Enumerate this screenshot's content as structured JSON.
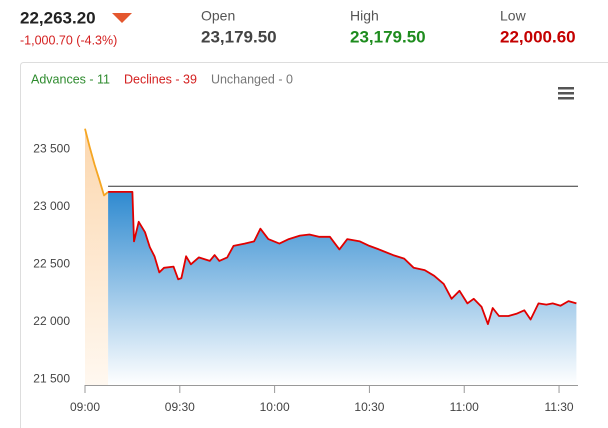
{
  "header": {
    "price": "22,263.20",
    "change": "-1,000.70 (-4.3%)",
    "stats": [
      {
        "label": "Open",
        "value": "23,179.50",
        "color": "#444444"
      },
      {
        "label": "High",
        "value": "23,179.50",
        "color": "#1e8c1e"
      },
      {
        "label": "Low",
        "value": "22,000.60",
        "color": "#c40000"
      }
    ]
  },
  "chart_data": {
    "type": "line",
    "legend": [
      {
        "text": "Advances - 11",
        "color": "#2e8b2e"
      },
      {
        "text": "Declines - 39",
        "color": "#d42020"
      },
      {
        "text": "Unchanged - 0",
        "color": "#777777"
      }
    ],
    "reference_line": 23179.5,
    "series": [
      {
        "color": "#f5a623",
        "fill": "#fde3c6",
        "x": [
          540,
          541.5,
          543,
          544.5,
          546,
          547.3
        ],
        "values": [
          23680,
          23520,
          23370,
          23240,
          23100,
          23130
        ]
      },
      {
        "color": "#e00000",
        "fill": "#2f8ad0",
        "x": [
          547.3,
          555,
          555.5,
          557,
          559,
          560.5,
          562,
          563.5,
          565,
          568,
          569.5,
          570.5,
          572,
          573.5,
          576,
          579.5,
          581,
          582.5,
          585,
          587,
          590.5,
          593.5,
          595.5,
          598,
          601.5,
          604.5,
          608,
          611,
          614,
          617.5,
          620.5,
          623,
          627,
          630,
          633,
          637.5,
          641,
          644,
          647.5,
          650.5,
          653.5,
          656,
          658.5,
          661,
          663,
          665.5,
          667.5,
          669,
          671,
          674,
          676.5,
          679,
          681,
          683.5,
          686,
          688,
          690.5,
          693,
          695.5
        ],
        "values": [
          23130,
          23130,
          22700,
          22870,
          22780,
          22650,
          22570,
          22430,
          22470,
          22480,
          22370,
          22380,
          22570,
          22500,
          22560,
          22530,
          22580,
          22530,
          22560,
          22660,
          22680,
          22700,
          22810,
          22720,
          22680,
          22720,
          22750,
          22760,
          22740,
          22740,
          22630,
          22720,
          22700,
          22660,
          22630,
          22580,
          22550,
          22470,
          22450,
          22400,
          22330,
          22200,
          22270,
          22160,
          22200,
          22130,
          21980,
          22120,
          22050,
          22050,
          22070,
          22100,
          22020,
          22160,
          22150,
          22160,
          22140,
          22180,
          22160
        ]
      }
    ],
    "xlim": [
      540,
      696
    ],
    "ylim": [
      21450,
      23930
    ],
    "xticks": [
      {
        "value": 540,
        "label": "09:00"
      },
      {
        "value": 570,
        "label": "09:30"
      },
      {
        "value": 600,
        "label": "10:00"
      },
      {
        "value": 630,
        "label": "10:30"
      },
      {
        "value": 660,
        "label": "11:00"
      },
      {
        "value": 690,
        "label": "11:30"
      }
    ],
    "yticks": [
      {
        "value": 21500,
        "label": "21 500"
      },
      {
        "value": 22000,
        "label": "22 000"
      },
      {
        "value": 22500,
        "label": "22 500"
      },
      {
        "value": 23000,
        "label": "23 000"
      },
      {
        "value": 23500,
        "label": "23 500"
      }
    ]
  }
}
